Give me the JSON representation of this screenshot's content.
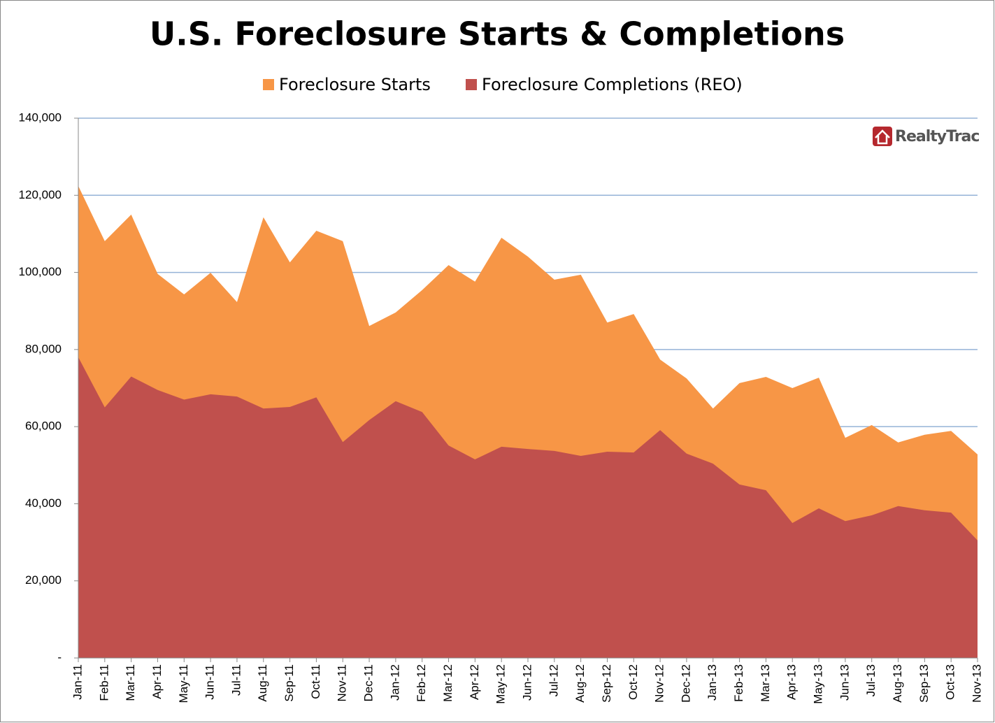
{
  "chart_data": {
    "type": "area",
    "title": "U.S. Foreclosure Starts & Completions",
    "logo_text": "RealtyTrac",
    "categories": [
      "Jan-11",
      "Feb-11",
      "Mar-11",
      "Apr-11",
      "May-11",
      "Jun-11",
      "Jul-11",
      "Aug-11",
      "Sep-11",
      "Oct-11",
      "Nov-11",
      "Dec-11",
      "Jan-12",
      "Feb-12",
      "Mar-12",
      "Apr-12",
      "May-12",
      "Jun-12",
      "Jul-12",
      "Aug-12",
      "Sep-12",
      "Oct-12",
      "Nov-12",
      "Dec-12",
      "Jan-13",
      "Feb-13",
      "Mar-13",
      "Apr-13",
      "May-13",
      "Jun-13",
      "Jul-13",
      "Aug-13",
      "Sep-13",
      "Oct-13",
      "Nov-13"
    ],
    "series": [
      {
        "name": "Foreclosure Starts",
        "color": "#f79646",
        "values": [
          122400,
          108100,
          115000,
          99600,
          94300,
          99900,
          92300,
          114300,
          102600,
          110800,
          108100,
          86100,
          89600,
          95400,
          101900,
          97600,
          109000,
          104100,
          98100,
          99400,
          87000,
          89200,
          77400,
          72500,
          64700,
          71300,
          72900,
          70000,
          72700,
          57100,
          60400,
          55900,
          57900,
          58900,
          52800
        ]
      },
      {
        "name": "Foreclosure Completions (REO)",
        "color": "#c0504d",
        "values": [
          78000,
          65000,
          73000,
          69500,
          67000,
          68400,
          67800,
          64700,
          65100,
          67600,
          56000,
          61700,
          66600,
          63800,
          55100,
          51500,
          54800,
          54200,
          53700,
          52400,
          53500,
          53300,
          59100,
          53000,
          50400,
          45000,
          43500,
          35000,
          38800,
          35500,
          37000,
          39400,
          38300,
          37700,
          30500
        ]
      }
    ],
    "ylim": [
      0,
      140000
    ],
    "yticks": [
      {
        "value": 0,
        "label": "-"
      },
      {
        "value": 20000,
        "label": "20,000"
      },
      {
        "value": 40000,
        "label": "40,000"
      },
      {
        "value": 60000,
        "label": "60,000"
      },
      {
        "value": 80000,
        "label": "80,000"
      },
      {
        "value": 100000,
        "label": "100,000"
      },
      {
        "value": 120000,
        "label": "120,000"
      },
      {
        "value": 140000,
        "label": "140,000"
      }
    ],
    "grid": true
  }
}
